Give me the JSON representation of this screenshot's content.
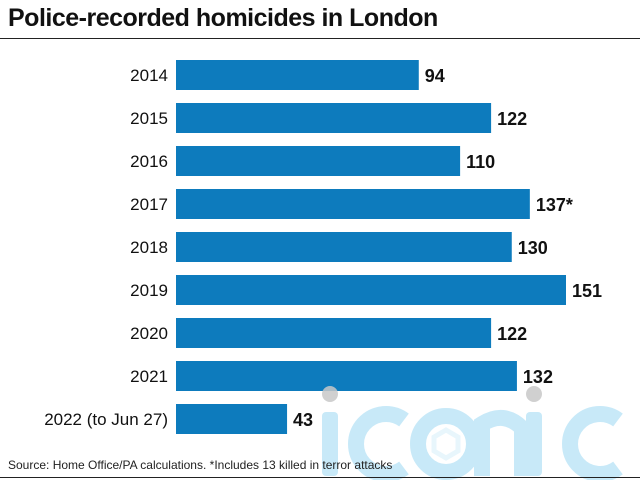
{
  "title": "Police-recorded homicides in London",
  "source": "Source: Home Office/PA calculations. *Includes 13 killed in terror attacks",
  "watermark_text": "iconic",
  "colors": {
    "bar": "#0d7bbd",
    "text": "#111111",
    "watermark": "#bfe6f7"
  },
  "chart_data": {
    "type": "bar",
    "orientation": "horizontal",
    "title": "Police-recorded homicides in London",
    "categories": [
      "2014",
      "2015",
      "2016",
      "2017",
      "2018",
      "2019",
      "2020",
      "2021",
      "2022 (to Jun 27)"
    ],
    "values": [
      94,
      122,
      110,
      137,
      130,
      151,
      122,
      132,
      43
    ],
    "labels": [
      "94",
      "122",
      "110",
      "137*",
      "130",
      "151",
      "122",
      "132",
      "43"
    ],
    "annotations": [
      "*Includes 13 killed in terror attacks"
    ],
    "xlim": [
      0,
      151
    ],
    "grid": false,
    "legend": "none"
  }
}
